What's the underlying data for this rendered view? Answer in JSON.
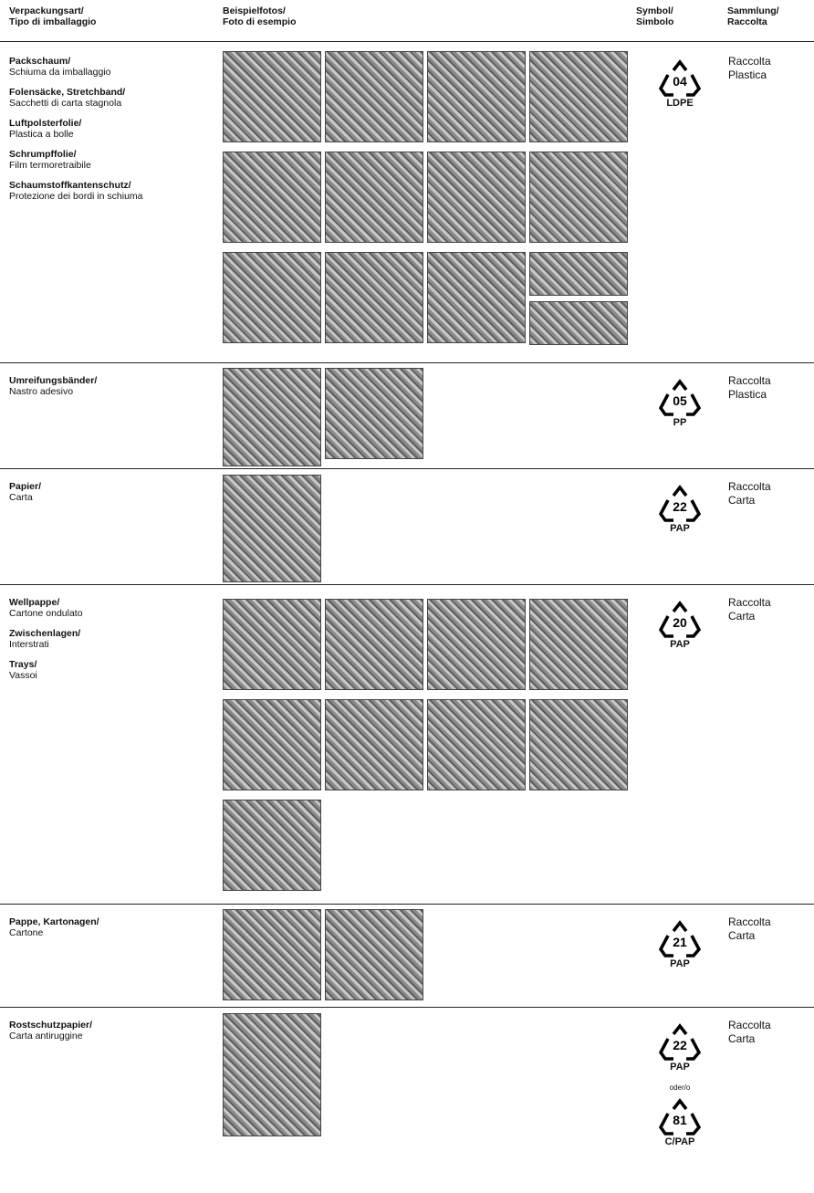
{
  "header": [
    {
      "de": "Verpackungsart/",
      "it": "Tipo di imballaggio"
    },
    {
      "de": "Beispielfotos/",
      "it": "Foto di esempio"
    },
    {
      "de": "Symbol/",
      "it": "Simbolo"
    },
    {
      "de": "Sammlung/",
      "it": "Raccolta"
    }
  ],
  "rows": [
    {
      "types": [
        {
          "de": "Packschaum/",
          "it": "Schiuma da imballaggio"
        },
        {
          "de": "Folensäcke, Stretchband/",
          "it": "Sacchetti di carta stagnola"
        },
        {
          "de": "Luftpolsterfolie/",
          "it": "Plastica a bolle"
        },
        {
          "de": "Schrumpffolie/",
          "it": "Film termoretraibile"
        },
        {
          "de": "Schaumstoffkantenschutz/",
          "it": "Protezione dei bordi in schiuma"
        }
      ],
      "symbols": [
        {
          "number": "04",
          "code": "LDPE"
        }
      ],
      "collection": "Raccolta Plastica"
    },
    {
      "types": [
        {
          "de": "Umreifungsbänder/",
          "it": "Nastro adesivo"
        }
      ],
      "symbols": [
        {
          "number": "05",
          "code": "PP"
        }
      ],
      "collection": "Raccolta Plastica"
    },
    {
      "types": [
        {
          "de": "Papier/",
          "it": "Carta"
        }
      ],
      "symbols": [
        {
          "number": "22",
          "code": "PAP"
        }
      ],
      "collection": "Raccolta Carta"
    },
    {
      "types": [
        {
          "de": "Wellpappe/",
          "it": "Cartone ondulato"
        },
        {
          "de": "Zwischenlagen/",
          "it": "Interstrati"
        },
        {
          "de": "Trays/",
          "it": "Vassoi"
        }
      ],
      "symbols": [
        {
          "number": "20",
          "code": "PAP"
        }
      ],
      "collection": "Raccolta Carta"
    },
    {
      "types": [
        {
          "de": "Pappe, Kartonagen/",
          "it": "Cartone"
        }
      ],
      "symbols": [
        {
          "number": "21",
          "code": "PAP"
        }
      ],
      "collection": "Raccolta Carta"
    },
    {
      "types": [
        {
          "de": "Rostschutzpapier/",
          "it": "Carta antiruggine"
        }
      ],
      "symbols": [
        {
          "number": "22",
          "code": "PAP"
        },
        {
          "number": "81",
          "code": "C/PAP"
        }
      ],
      "separator": "oder/o",
      "collection": "Raccolta Carta"
    }
  ]
}
